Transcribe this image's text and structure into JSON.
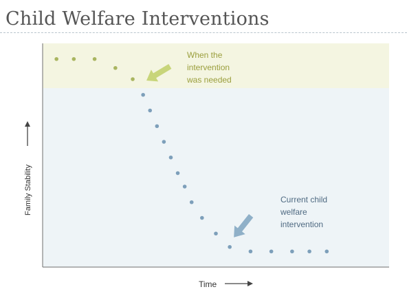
{
  "title": "Child Welfare Interventions",
  "chart_data": {
    "type": "scatter",
    "title": "Child Welfare Interventions",
    "xlabel": "Time",
    "ylabel": "Family Stability",
    "xlim": [
      0,
      100
    ],
    "ylim": [
      0,
      100
    ],
    "grid": false,
    "x_ticks_shown": false,
    "y_ticks_shown": false,
    "series": [
      {
        "color": "#a9b560",
        "x": [
          4,
          9,
          15,
          21,
          26
        ],
        "y": [
          93,
          93,
          93,
          89,
          84
        ]
      },
      {
        "color": "#7d9fba",
        "x": [
          29,
          31,
          33,
          35,
          37,
          39,
          41,
          43,
          46,
          50,
          54,
          60,
          66,
          72,
          77,
          82
        ],
        "y": [
          77,
          70,
          63,
          56,
          49,
          42,
          36,
          29,
          22,
          15,
          9,
          7,
          7,
          7,
          7,
          7
        ]
      }
    ],
    "regions": [
      {
        "label": "optimal-zone",
        "y_from": 80,
        "y_to": 100,
        "color": "#f4f5e1"
      },
      {
        "label": "lower-zone",
        "y_from": 0,
        "y_to": 80,
        "color": "#eef4f7"
      }
    ],
    "annotations": [
      {
        "lines": [
          "When the",
          "intervention",
          "was needed"
        ],
        "color": "#9a9e3c",
        "arrow_color": "#c8d57a",
        "target": [
          26,
          84
        ]
      },
      {
        "lines": [
          "Current child",
          "welfare",
          "intervention"
        ],
        "color": "#4f6a82",
        "arrow_color": "#8fb0c8",
        "target": [
          54,
          9
        ]
      }
    ]
  }
}
